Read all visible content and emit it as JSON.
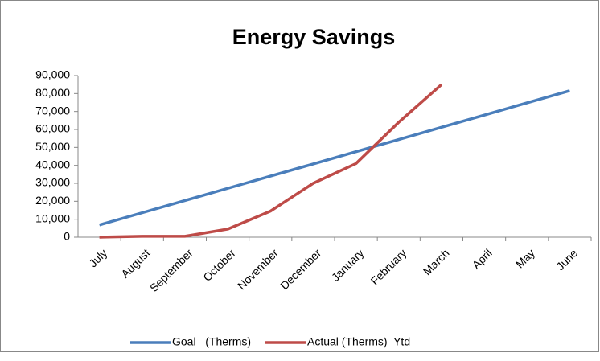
{
  "chart_data": {
    "type": "line",
    "title": "Energy Savings",
    "categories": [
      "July",
      "August",
      "September",
      "October",
      "November",
      "December",
      "January",
      "February",
      "March",
      "April",
      "May",
      "June"
    ],
    "series": [
      {
        "name": "Goal   (Therms)",
        "color": "#4a7ebb",
        "values": [
          6800,
          13600,
          20400,
          27200,
          34000,
          40800,
          47600,
          54400,
          61200,
          68000,
          74800,
          81600
        ]
      },
      {
        "name": "Actual (Therms)  Ytd",
        "color": "#be4b48",
        "values": [
          0,
          500,
          500,
          4500,
          14500,
          30000,
          41000,
          64000,
          85000,
          null,
          null,
          null
        ]
      }
    ],
    "ylim": [
      0,
      90000
    ],
    "yticks": [
      0,
      {
        "value": 10000,
        "label": "10,000"
      },
      {
        "value": 20000,
        "label": "20,000"
      },
      {
        "value": 30000,
        "label": "30,000"
      },
      {
        "value": 40000,
        "label": "40,000"
      },
      {
        "value": 50000,
        "label": "50,000"
      },
      {
        "value": 60000,
        "label": "60,000"
      },
      {
        "value": 70000,
        "label": "70,000"
      },
      {
        "value": 80000,
        "label": "80,000"
      },
      {
        "value": 90000,
        "label": "90,000"
      }
    ],
    "grid": false,
    "legend": "bottom"
  }
}
